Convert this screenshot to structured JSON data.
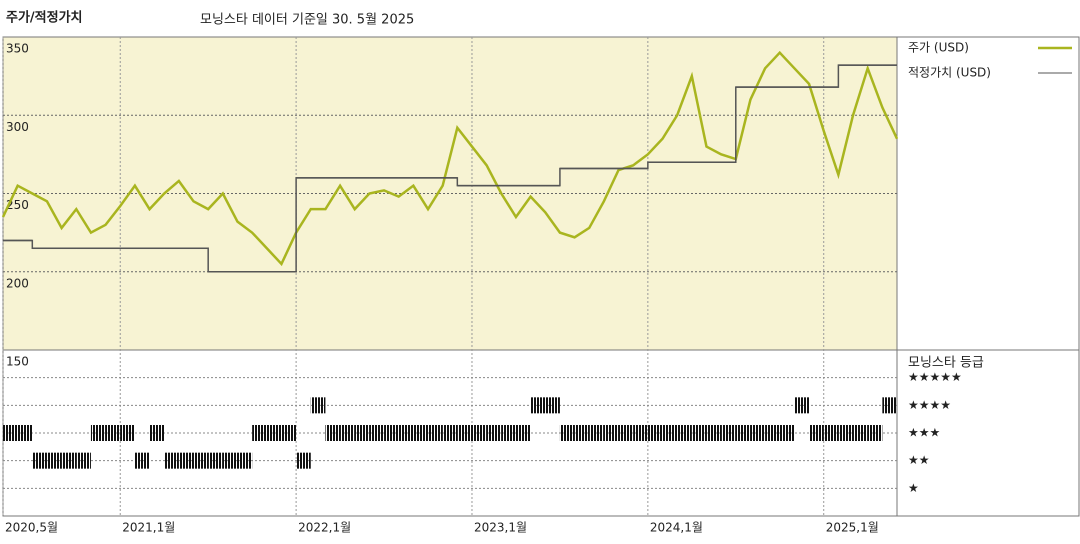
{
  "header": {
    "title": "주가/적정가치",
    "subtitle": "모닝스타 데이터 기준일 30. 5월 2025"
  },
  "chart_data": [
    {
      "type": "line",
      "x": [
        "2020-05",
        "2020-06",
        "2020-07",
        "2020-08",
        "2020-09",
        "2020-10",
        "2020-11",
        "2020-12",
        "2021-01",
        "2021-02",
        "2021-03",
        "2021-04",
        "2021-05",
        "2021-06",
        "2021-07",
        "2021-08",
        "2021-09",
        "2021-10",
        "2021-11",
        "2021-12",
        "2022-01",
        "2022-02",
        "2022-03",
        "2022-04",
        "2022-05",
        "2022-06",
        "2022-07",
        "2022-08",
        "2022-09",
        "2022-10",
        "2022-11",
        "2022-12",
        "2023-01",
        "2023-02",
        "2023-03",
        "2023-04",
        "2023-05",
        "2023-06",
        "2023-07",
        "2023-08",
        "2023-09",
        "2023-10",
        "2023-11",
        "2023-12",
        "2024-01",
        "2024-02",
        "2024-03",
        "2024-04",
        "2024-05",
        "2024-06",
        "2024-07",
        "2024-08",
        "2024-09",
        "2024-10",
        "2024-11",
        "2024-12",
        "2025-01",
        "2025-02",
        "2025-03",
        "2025-04",
        "2025-05",
        "2025-06"
      ],
      "series": [
        {
          "name": "주가 (USD)",
          "color": "#a9b51f",
          "values": [
            235,
            255,
            250,
            245,
            228,
            240,
            225,
            230,
            242,
            255,
            240,
            250,
            258,
            245,
            240,
            250,
            232,
            225,
            215,
            205,
            225,
            240,
            240,
            255,
            240,
            250,
            252,
            248,
            255,
            240,
            255,
            292,
            280,
            268,
            250,
            235,
            248,
            238,
            225,
            222,
            228,
            245,
            265,
            268,
            275,
            285,
            300,
            325,
            280,
            275,
            272,
            310,
            330,
            340,
            330,
            320,
            290,
            262,
            300,
            330,
            305,
            285
          ]
        },
        {
          "name": "적정가치 (USD)",
          "color": "#555555",
          "step": true,
          "values": [
            220,
            220,
            215,
            215,
            215,
            215,
            215,
            215,
            215,
            215,
            215,
            215,
            215,
            215,
            200,
            200,
            200,
            200,
            200,
            200,
            260,
            260,
            260,
            260,
            260,
            260,
            260,
            260,
            260,
            260,
            260,
            255,
            255,
            255,
            255,
            255,
            255,
            255,
            266,
            266,
            266,
            266,
            266,
            266,
            270,
            270,
            270,
            270,
            270,
            270,
            318,
            318,
            318,
            318,
            318,
            318,
            318,
            332,
            332,
            332,
            332,
            332
          ]
        }
      ],
      "xlim": [
        "2020-05",
        "2025-06"
      ],
      "xticks": [
        {
          "value": "2020-05",
          "label": "2020,5월"
        },
        {
          "value": "2021-01",
          "label": "2021,1월"
        },
        {
          "value": "2022-01",
          "label": "2022,1월"
        },
        {
          "value": "2023-01",
          "label": "2023,1월"
        },
        {
          "value": "2024-01",
          "label": "2024,1월"
        },
        {
          "value": "2025-01",
          "label": "2025,1월"
        }
      ],
      "ylim": [
        150,
        350
      ],
      "yticks": [
        150,
        200,
        250,
        300,
        350
      ],
      "grid": true
    },
    {
      "type": "rating",
      "title": "모닝스타 등급",
      "x": [
        "2020-05",
        "2020-06",
        "2020-07",
        "2020-08",
        "2020-09",
        "2020-10",
        "2020-11",
        "2020-12",
        "2021-01",
        "2021-02",
        "2021-03",
        "2021-04",
        "2021-05",
        "2021-06",
        "2021-07",
        "2021-08",
        "2021-09",
        "2021-10",
        "2021-11",
        "2021-12",
        "2022-01",
        "2022-02",
        "2022-03",
        "2022-04",
        "2022-05",
        "2022-06",
        "2022-07",
        "2022-08",
        "2022-09",
        "2022-10",
        "2022-11",
        "2022-12",
        "2023-01",
        "2023-02",
        "2023-03",
        "2023-04",
        "2023-05",
        "2023-06",
        "2023-07",
        "2023-08",
        "2023-09",
        "2023-10",
        "2023-11",
        "2023-12",
        "2024-01",
        "2024-02",
        "2024-03",
        "2024-04",
        "2024-05",
        "2024-06",
        "2024-07",
        "2024-08",
        "2024-09",
        "2024-10",
        "2024-11",
        "2024-12",
        "2025-01",
        "2025-02",
        "2025-03",
        "2025-04",
        "2025-05"
      ],
      "values": [
        3,
        3,
        2,
        2,
        2,
        2,
        3,
        3,
        3,
        2,
        3,
        2,
        2,
        2,
        2,
        2,
        2,
        3,
        3,
        3,
        2,
        4,
        3,
        3,
        3,
        3,
        3,
        3,
        3,
        3,
        3,
        3,
        3,
        3,
        3,
        3,
        4,
        4,
        3,
        3,
        3,
        3,
        3,
        3,
        3,
        3,
        3,
        3,
        3,
        3,
        3,
        3,
        3,
        3,
        4,
        3,
        3,
        3,
        3,
        3,
        4
      ],
      "color": "#111111",
      "ylim": [
        0,
        6
      ],
      "yticks": [
        {
          "value": 5,
          "label": "★★★★★"
        },
        {
          "value": 4,
          "label": "★★★★"
        },
        {
          "value": 3,
          "label": "★★★"
        },
        {
          "value": 2,
          "label": "★★"
        },
        {
          "value": 1,
          "label": "★"
        }
      ]
    }
  ]
}
